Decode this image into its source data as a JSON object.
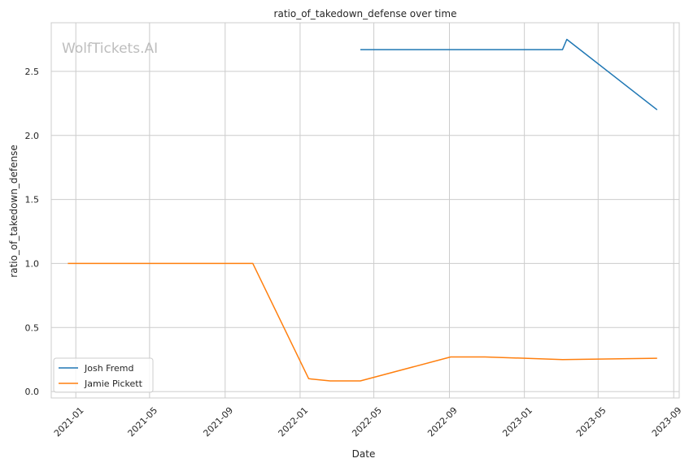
{
  "chart_data": {
    "type": "line",
    "title": "ratio_of_takedown_defense over time",
    "xlabel": "Date",
    "ylabel": "ratio_of_takedown_defense",
    "watermark": "WolfTickets.AI",
    "xlim": [
      "2020-11-22",
      "2023-09-10"
    ],
    "ylim": [
      -0.05,
      2.88
    ],
    "x_ticks": [
      "2021-01",
      "2021-05",
      "2021-09",
      "2022-01",
      "2022-05",
      "2022-09",
      "2023-01",
      "2023-05",
      "2023-09"
    ],
    "y_ticks": [
      "0.0",
      "0.5",
      "1.0",
      "1.5",
      "2.0",
      "2.5"
    ],
    "grid": true,
    "legend_position": "lower-left",
    "series": [
      {
        "name": "Josh Fremd",
        "color": "#1f77b4",
        "x": [
          "2022-04-09",
          "2023-03-04",
          "2023-03-11",
          "2023-08-05"
        ],
        "y": [
          2.67,
          2.67,
          2.75,
          2.2
        ]
      },
      {
        "name": "Jamie Pickett",
        "color": "#ff7f0e",
        "x": [
          "2020-12-19",
          "2021-10-16",
          "2022-01-15",
          "2022-02-19",
          "2022-04-09",
          "2022-09-03",
          "2022-10-29",
          "2023-03-04",
          "2023-08-05"
        ],
        "y": [
          1.0,
          1.0,
          0.1,
          0.083,
          0.083,
          0.27,
          0.27,
          0.25,
          0.26
        ]
      }
    ]
  }
}
